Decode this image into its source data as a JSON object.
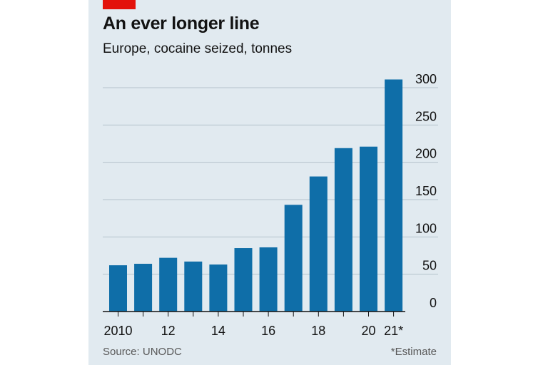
{
  "colors": {
    "panel": "#e1eaf0",
    "bar": "#0f6ea8",
    "grid": "#b5c2cb",
    "axis": "#121212",
    "brand_tag": "#e3120b"
  },
  "header": {
    "title": "An ever longer line",
    "subtitle": "Europe, cocaine seized, tonnes"
  },
  "footer": {
    "source": "Source: UNODC",
    "note": "*Estimate"
  },
  "chart_data": {
    "type": "bar",
    "categories": [
      "2010",
      "2011",
      "2012",
      "2013",
      "2014",
      "2015",
      "2016",
      "2017",
      "2018",
      "2019",
      "2020",
      "2021*"
    ],
    "x_tick_labels": [
      "2010",
      "",
      "12",
      "",
      "14",
      "",
      "16",
      "",
      "18",
      "",
      "20",
      "21*"
    ],
    "values": [
      62,
      64,
      72,
      67,
      63,
      85,
      86,
      143,
      181,
      219,
      221,
      311
    ],
    "title": "An ever longer line",
    "subtitle": "Europe, cocaine seized, tonnes",
    "ylim": [
      0,
      300
    ],
    "yticks": [
      0,
      50,
      100,
      150,
      200,
      250,
      300
    ],
    "y_axis_side": "right",
    "grid": true
  }
}
